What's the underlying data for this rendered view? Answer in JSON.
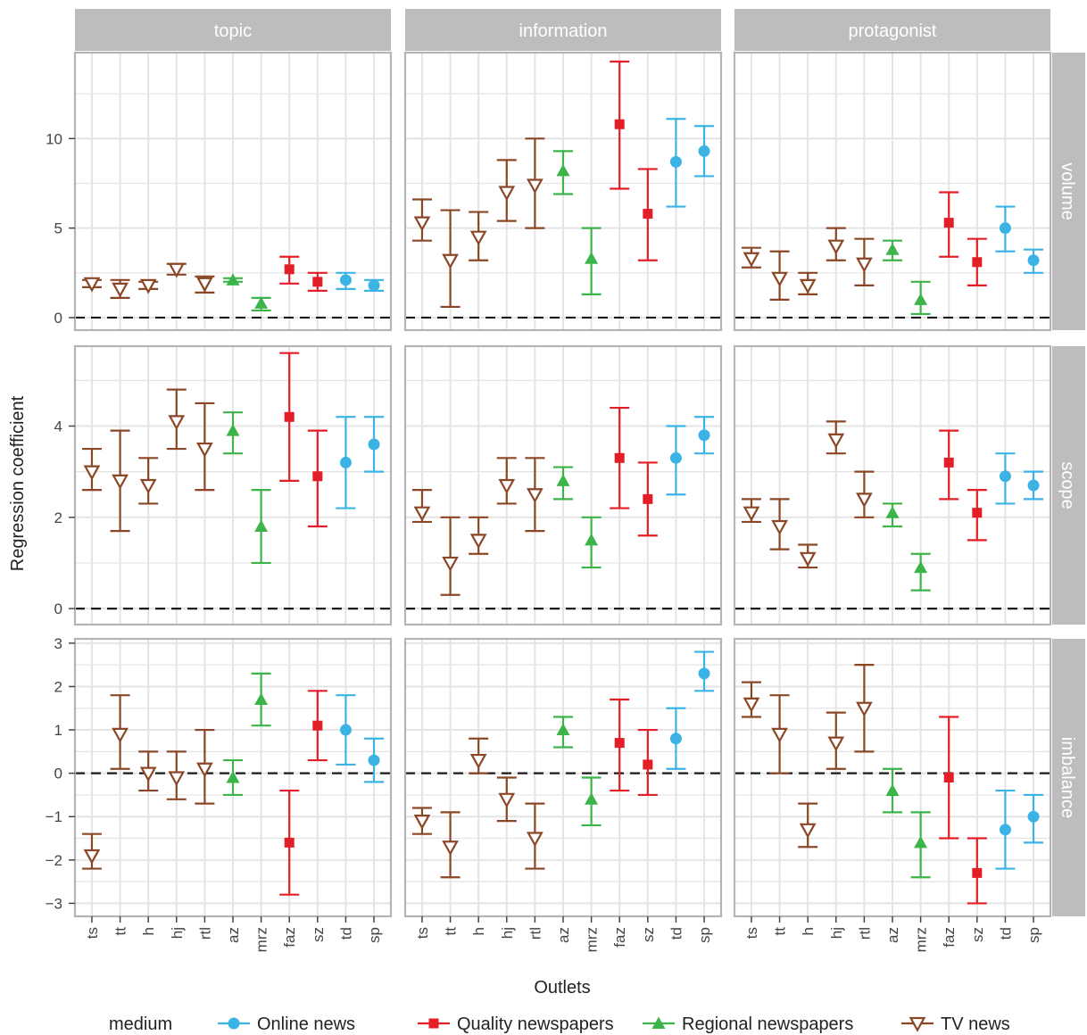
{
  "chart_data": {
    "type": "scatter",
    "subtype": "point-with-errorbars, faceted grid",
    "xlabel": "Outlets",
    "ylabel": "Regression coefficient",
    "categories": [
      "ts",
      "tt",
      "h",
      "hj",
      "rtl",
      "az",
      "mrz",
      "faz",
      "sz",
      "td",
      "sp"
    ],
    "medium_by_outlet": {
      "ts": "TV news",
      "tt": "TV news",
      "h": "TV news",
      "hj": "TV news",
      "rtl": "TV news",
      "az": "Regional newspapers",
      "mrz": "Regional newspapers",
      "faz": "Quality newspapers",
      "sz": "Quality newspapers",
      "td": "Online news",
      "sp": "Online news"
    },
    "columns": [
      "topic",
      "information",
      "protagonist"
    ],
    "rows": [
      "volume",
      "scope",
      "imbalance"
    ],
    "row_ylim": {
      "volume": [
        -0.7,
        14.8
      ],
      "scope": [
        -0.35,
        5.75
      ],
      "imbalance": [
        -3.3,
        3.1
      ]
    },
    "row_yticks": {
      "volume": [
        "0",
        "5",
        "10"
      ],
      "scope": [
        "0",
        "2",
        "4"
      ],
      "imbalance": [
        "3",
        "2",
        "1",
        "0",
        "−1",
        "−2",
        "−3"
      ]
    },
    "reference_line": 0,
    "grid": true,
    "legend": {
      "title": "medium",
      "position": "bottom",
      "items": [
        {
          "name": "Online news",
          "color": "#3bb4e5",
          "shape": "circle"
        },
        {
          "name": "Quality newspapers",
          "color": "#e41e26",
          "shape": "square"
        },
        {
          "name": "Regional newspapers",
          "color": "#3cb44a",
          "shape": "triangle-up"
        },
        {
          "name": "TV news",
          "color": "#8b4725",
          "shape": "triangle-down-open"
        }
      ]
    },
    "panels": [
      {
        "row": "volume",
        "col": "topic",
        "points": [
          [
            1.9,
            1.7,
            2.1
          ],
          [
            1.6,
            1.1,
            2.1
          ],
          [
            1.8,
            1.6,
            2.0
          ],
          [
            2.7,
            2.4,
            3.0
          ],
          [
            1.9,
            1.4,
            2.3
          ],
          [
            2.1,
            2.0,
            2.2
          ],
          [
            0.8,
            0.4,
            1.1
          ],
          [
            2.7,
            1.9,
            3.4
          ],
          [
            2.0,
            1.5,
            2.5
          ],
          [
            2.1,
            1.6,
            2.5
          ],
          [
            1.8,
            1.5,
            2.1
          ]
        ]
      },
      {
        "row": "volume",
        "col": "information",
        "points": [
          [
            5.3,
            4.3,
            6.6
          ],
          [
            3.2,
            0.6,
            6.0
          ],
          [
            4.5,
            3.2,
            5.9
          ],
          [
            7.0,
            5.4,
            8.8
          ],
          [
            7.4,
            5.0,
            10.0
          ],
          [
            8.2,
            6.9,
            9.3
          ],
          [
            3.3,
            1.3,
            5.0
          ],
          [
            10.8,
            7.2,
            14.3
          ],
          [
            5.8,
            3.2,
            8.3
          ],
          [
            8.7,
            6.2,
            11.1
          ],
          [
            9.3,
            7.9,
            10.7
          ]
        ]
      },
      {
        "row": "volume",
        "col": "protagonist",
        "points": [
          [
            3.3,
            2.8,
            3.9
          ],
          [
            2.2,
            1.0,
            3.7
          ],
          [
            1.8,
            1.3,
            2.5
          ],
          [
            4.0,
            3.2,
            5.0
          ],
          [
            3.0,
            1.8,
            4.4
          ],
          [
            3.8,
            3.2,
            4.3
          ],
          [
            1.0,
            0.2,
            2.0
          ],
          [
            5.3,
            3.4,
            7.0
          ],
          [
            3.1,
            1.8,
            4.4
          ],
          [
            5.0,
            3.7,
            6.2
          ],
          [
            3.2,
            2.5,
            3.8
          ]
        ]
      },
      {
        "row": "scope",
        "col": "topic",
        "points": [
          [
            3.0,
            2.6,
            3.5
          ],
          [
            2.8,
            1.7,
            3.9
          ],
          [
            2.7,
            2.3,
            3.3
          ],
          [
            4.1,
            3.5,
            4.8
          ],
          [
            3.5,
            2.6,
            4.5
          ],
          [
            3.9,
            3.4,
            4.3
          ],
          [
            1.8,
            1.0,
            2.6
          ],
          [
            4.2,
            2.8,
            5.6
          ],
          [
            2.9,
            1.8,
            3.9
          ],
          [
            3.2,
            2.2,
            4.2
          ],
          [
            3.6,
            3.0,
            4.2
          ]
        ]
      },
      {
        "row": "scope",
        "col": "information",
        "points": [
          [
            2.1,
            1.9,
            2.6
          ],
          [
            1.0,
            0.3,
            2.0
          ],
          [
            1.5,
            1.2,
            2.0
          ],
          [
            2.7,
            2.3,
            3.3
          ],
          [
            2.5,
            1.7,
            3.3
          ],
          [
            2.8,
            2.4,
            3.1
          ],
          [
            1.5,
            0.9,
            2.0
          ],
          [
            3.3,
            2.2,
            4.4
          ],
          [
            2.4,
            1.6,
            3.2
          ],
          [
            3.3,
            2.5,
            4.0
          ],
          [
            3.8,
            3.4,
            4.2
          ]
        ]
      },
      {
        "row": "scope",
        "col": "protagonist",
        "points": [
          [
            2.1,
            1.9,
            2.4
          ],
          [
            1.8,
            1.3,
            2.4
          ],
          [
            1.1,
            0.9,
            1.4
          ],
          [
            3.7,
            3.4,
            4.1
          ],
          [
            2.4,
            2.0,
            3.0
          ],
          [
            2.1,
            1.8,
            2.3
          ],
          [
            0.9,
            0.4,
            1.2
          ],
          [
            3.2,
            2.4,
            3.9
          ],
          [
            2.1,
            1.5,
            2.6
          ],
          [
            2.9,
            2.3,
            3.4
          ],
          [
            2.7,
            2.4,
            3.0
          ]
        ]
      },
      {
        "row": "imbalance",
        "col": "topic",
        "points": [
          [
            -1.9,
            -2.2,
            -1.4
          ],
          [
            0.9,
            0.1,
            1.8
          ],
          [
            0.0,
            -0.4,
            0.5
          ],
          [
            -0.1,
            -0.6,
            0.5
          ],
          [
            0.1,
            -0.7,
            1.0
          ],
          [
            -0.1,
            -0.5,
            0.3
          ],
          [
            1.7,
            1.1,
            2.3
          ],
          [
            -1.6,
            -2.8,
            -0.4
          ],
          [
            1.1,
            0.3,
            1.9
          ],
          [
            1.0,
            0.2,
            1.8
          ],
          [
            0.3,
            -0.2,
            0.8
          ]
        ]
      },
      {
        "row": "imbalance",
        "col": "information",
        "points": [
          [
            -1.1,
            -1.4,
            -0.8
          ],
          [
            -1.7,
            -2.4,
            -0.9
          ],
          [
            0.3,
            0.0,
            0.8
          ],
          [
            -0.6,
            -1.1,
            -0.1
          ],
          [
            -1.5,
            -2.2,
            -0.7
          ],
          [
            1.0,
            0.6,
            1.3
          ],
          [
            -0.6,
            -1.2,
            -0.1
          ],
          [
            0.7,
            -0.4,
            1.7
          ],
          [
            0.2,
            -0.5,
            1.0
          ],
          [
            0.8,
            0.1,
            1.5
          ],
          [
            2.3,
            1.9,
            2.8
          ]
        ]
      },
      {
        "row": "imbalance",
        "col": "protagonist",
        "points": [
          [
            1.6,
            1.3,
            2.1
          ],
          [
            0.9,
            0.0,
            1.8
          ],
          [
            -1.3,
            -1.7,
            -0.7
          ],
          [
            0.7,
            0.1,
            1.4
          ],
          [
            1.5,
            0.5,
            2.5
          ],
          [
            -0.4,
            -0.9,
            0.1
          ],
          [
            -1.6,
            -2.4,
            -0.9
          ],
          [
            -0.1,
            -1.5,
            1.3
          ],
          [
            -2.3,
            -3.0,
            -1.5
          ],
          [
            -1.3,
            -2.2,
            -0.4
          ],
          [
            -1.0,
            -1.6,
            -0.5
          ]
        ]
      }
    ]
  },
  "colors": {
    "Online news": "#3bb4e5",
    "Quality newspapers": "#e41e26",
    "Regional newspapers": "#3cb44a",
    "TV news": "#8b4725",
    "strip_bg": "#bdbdbf",
    "strip_text": "#ffffff",
    "panel_border": "#b4b4b4",
    "grid": "#e4e4e4",
    "zero_line": "#1a1a1a"
  }
}
